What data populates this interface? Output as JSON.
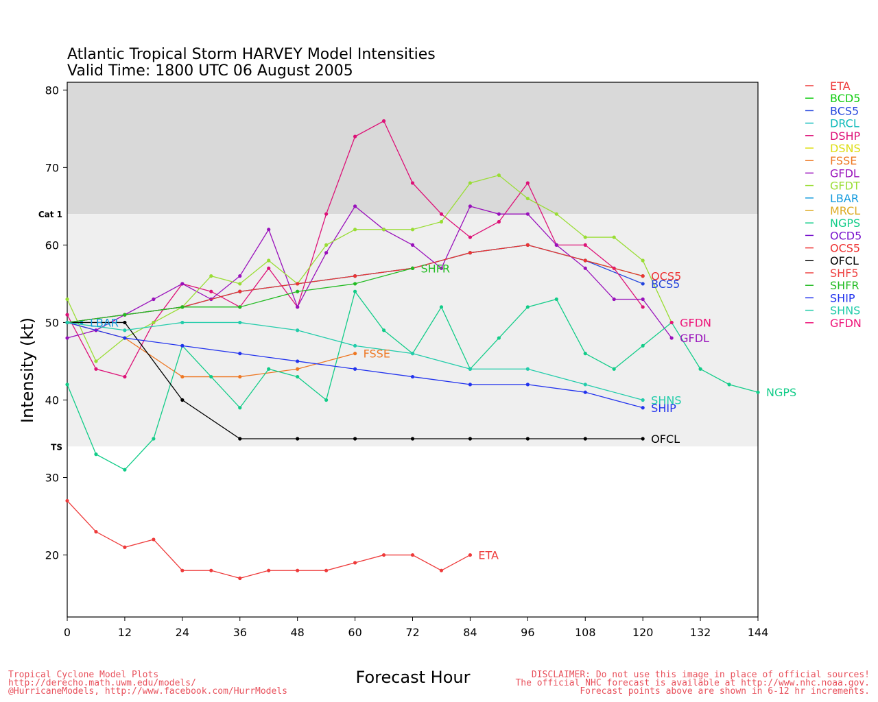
{
  "title_line1": "Atlantic Tropical Storm HARVEY Model Intensities",
  "title_line2": "Valid Time: 1800 UTC 06 August 2005",
  "footer_left": [
    "Tropical Cyclone Model Plots",
    "http://derecho.math.uwm.edu/models/",
    "@HurricaneModels, http://www.facebook.com/HurrModels"
  ],
  "footer_right": [
    "DISCLAIMER: Do not use this image in place of official sources!",
    "The official NHC forecast is available at http://www.nhc.noaa.gov.",
    "Forecast points above are shown in 6-12 hr increments."
  ],
  "chart_data": {
    "type": "line",
    "xlabel": "Forecast Hour",
    "ylabel": "Intensity (kt)",
    "xlim": [
      0,
      144
    ],
    "ylim": [
      12,
      81
    ],
    "xticks": [
      0,
      12,
      24,
      36,
      48,
      60,
      72,
      84,
      96,
      108,
      120,
      132,
      144
    ],
    "yticks": [
      20,
      30,
      40,
      50,
      60,
      70,
      80
    ],
    "thresholds": [
      {
        "name": "TS",
        "value": 34
      },
      {
        "name": "Cat 1",
        "value": 64
      }
    ],
    "band_colors": {
      "below": "#ffffff",
      "ts": "#efefef",
      "cat1": "#d9d9d9"
    },
    "legend_position": "right",
    "series": [
      {
        "name": "ETA",
        "color": "#ee3a3a",
        "x": [
          0,
          6,
          12,
          18,
          24,
          30,
          36,
          42,
          48,
          54,
          60,
          66,
          72,
          78,
          84
        ],
        "y": [
          27,
          23,
          21,
          22,
          18,
          18,
          17,
          18,
          18,
          18,
          19,
          20,
          20,
          18,
          20
        ],
        "label": "ETA"
      },
      {
        "name": "BCD5",
        "color": "#11cc11",
        "x": [
          0,
          12,
          24,
          36,
          48,
          60,
          72,
          84,
          96,
          108,
          120
        ],
        "y": [
          50,
          51,
          52,
          54,
          55,
          56,
          57,
          59,
          60,
          58,
          56
        ],
        "label": ""
      },
      {
        "name": "BCS5",
        "color": "#2244dd",
        "x": [
          0,
          12,
          24,
          36,
          48,
          60,
          72,
          84,
          96,
          108,
          120
        ],
        "y": [
          50,
          51,
          52,
          54,
          55,
          56,
          57,
          59,
          60,
          58,
          55
        ],
        "label": "BCS5"
      },
      {
        "name": "DRCL",
        "color": "#11bbbb",
        "x": [],
        "y": [],
        "label": ""
      },
      {
        "name": "DSHP",
        "color": "#dd1177",
        "x": [
          0,
          6,
          12,
          18,
          24,
          30,
          36,
          42,
          48,
          54,
          60,
          66,
          72,
          78,
          84,
          90,
          96,
          102,
          108,
          114,
          120
        ],
        "y": [
          51,
          44,
          43,
          50,
          55,
          54,
          52,
          57,
          52,
          64,
          74,
          76,
          68,
          64,
          61,
          63,
          68,
          60,
          60,
          57,
          52
        ],
        "label": ""
      },
      {
        "name": "DSNS",
        "color": "#dddd11",
        "x": [],
        "y": [],
        "label": ""
      },
      {
        "name": "FSSE",
        "color": "#ee7722",
        "x": [
          0,
          12,
          24,
          36,
          48,
          60
        ],
        "y": [
          50,
          48,
          43,
          43,
          44,
          46
        ],
        "label": "FSSE"
      },
      {
        "name": "GFDL",
        "color": "#9911bb",
        "x": [
          0,
          6,
          12,
          18,
          24,
          30,
          36,
          42,
          48,
          54,
          60,
          66,
          72,
          78,
          84,
          90,
          96,
          102,
          108,
          114,
          120,
          126
        ],
        "y": [
          48,
          49,
          51,
          53,
          55,
          53,
          56,
          62,
          52,
          59,
          65,
          62,
          60,
          57,
          65,
          64,
          64,
          60,
          57,
          53,
          53,
          48
        ],
        "label": "GFDL"
      },
      {
        "name": "GFDT",
        "color": "#99dd33",
        "x": [
          0,
          6,
          12,
          18,
          24,
          30,
          36,
          42,
          48,
          54,
          60,
          66,
          72,
          78,
          84,
          90,
          96,
          102,
          108,
          114,
          120,
          126
        ],
        "y": [
          53,
          45,
          48,
          50,
          52,
          56,
          55,
          58,
          55,
          60,
          62,
          62,
          62,
          63,
          68,
          69,
          66,
          64,
          61,
          61,
          58,
          50
        ],
        "label": ""
      },
      {
        "name": "LBAR",
        "color": "#1199dd",
        "x": [
          0,
          3
        ],
        "y": [
          50,
          50
        ],
        "label": "LBAR"
      },
      {
        "name": "MRCL",
        "color": "#ddaa22",
        "x": [],
        "y": [],
        "label": "MRCL"
      },
      {
        "name": "NGPS",
        "color": "#11cc88",
        "x": [
          0,
          6,
          12,
          18,
          24,
          30,
          36,
          42,
          48,
          54,
          60,
          66,
          72,
          78,
          84,
          90,
          96,
          102,
          108,
          114,
          120,
          126,
          132,
          138,
          144
        ],
        "y": [
          42,
          33,
          31,
          35,
          47,
          43,
          39,
          44,
          43,
          40,
          54,
          49,
          46,
          52,
          44,
          48,
          52,
          53,
          46,
          44,
          47,
          50,
          44,
          42,
          41
        ],
        "label": "NGPS"
      },
      {
        "name": "OCD5",
        "color": "#7711cc",
        "x": [],
        "y": [],
        "label": ""
      },
      {
        "name": "OCS5",
        "color": "#ee3333",
        "x": [
          0,
          12,
          24,
          36,
          48,
          60,
          72,
          84,
          96,
          108,
          120
        ],
        "y": [
          50,
          51,
          52,
          54,
          55,
          56,
          57,
          59,
          60,
          58,
          56
        ],
        "label": "OCS5"
      },
      {
        "name": "OFCL",
        "color": "#000000",
        "x": [
          0,
          12,
          24,
          36,
          48,
          60,
          72,
          84,
          96,
          108,
          120
        ],
        "y": [
          50,
          50,
          40,
          35,
          35,
          35,
          35,
          35,
          35,
          35,
          35
        ],
        "label": "OFCL"
      },
      {
        "name": "SHF5",
        "color": "#ee4444",
        "x": [],
        "y": [],
        "label": ""
      },
      {
        "name": "SHFR",
        "color": "#22bb22",
        "x": [
          0,
          12,
          24,
          36,
          48,
          60,
          72
        ],
        "y": [
          50,
          51,
          52,
          52,
          54,
          55,
          57
        ],
        "label": "SHFR"
      },
      {
        "name": "SHIP",
        "color": "#2233ee",
        "x": [
          0,
          12,
          24,
          36,
          48,
          60,
          72,
          84,
          96,
          108,
          120
        ],
        "y": [
          50,
          48,
          47,
          46,
          45,
          44,
          43,
          42,
          42,
          41,
          39
        ],
        "label": "SHIP"
      },
      {
        "name": "SHNS",
        "color": "#22ccaa",
        "x": [
          0,
          12,
          24,
          36,
          48,
          60,
          72,
          84,
          96,
          108,
          120
        ],
        "y": [
          50,
          49,
          50,
          50,
          49,
          47,
          46,
          44,
          44,
          42,
          40
        ],
        "label": "SHNS"
      },
      {
        "name": "GFDN",
        "color": "#ee1177",
        "x": [
          126
        ],
        "y": [
          50
        ],
        "label": "GFDN"
      }
    ]
  }
}
